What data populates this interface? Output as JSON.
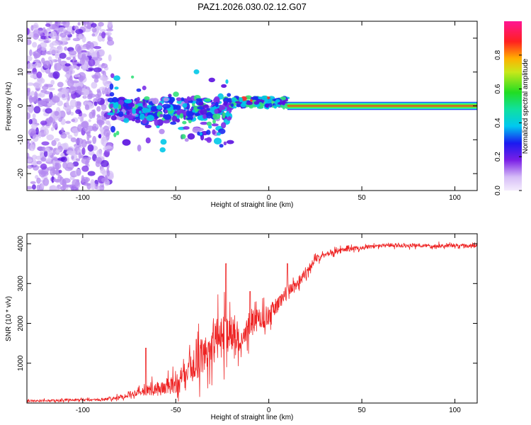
{
  "title": "PAZ1.2026.030.02.12.G07",
  "colors": {
    "snr_line": "#ee2222",
    "spectrum_core": "#ff2a2a",
    "spectrum_low": "#c9a8f5",
    "spectrum_mid": "#6a1ae0"
  },
  "chart_data": [
    {
      "type": "heatmap",
      "name": "spectrogram",
      "title": "PAZ1.2026.030.02.12.G07",
      "xlabel": "Height of straight line (km)",
      "ylabel": "Frequency (Hz)",
      "xlim": [
        -130,
        112
      ],
      "ylim": [
        -25,
        25
      ],
      "x_ticks": [
        -100,
        -50,
        0,
        50,
        100
      ],
      "y_ticks": [
        -20,
        -10,
        0,
        10,
        20
      ],
      "colorbar": {
        "label": "Normalized spectral amplitude",
        "range": [
          0,
          1
        ],
        "ticks": [
          0.0,
          0.2,
          0.4,
          0.6,
          0.8
        ],
        "tick_labels": [
          "0.0",
          "0.2",
          "0.4",
          "0.6",
          "0.8"
        ],
        "colormap": "rainbow"
      },
      "description_segments": [
        {
          "height_from": -130,
          "height_to": -85,
          "freq_center": 0,
          "freq_spread": 25,
          "amplitude": 0.1,
          "pattern": "noise"
        },
        {
          "height_from": -85,
          "height_to": -20,
          "freq_center": -1,
          "freq_spread": 3,
          "amplitude": 0.3,
          "pattern": "scattered"
        },
        {
          "height_from": -20,
          "height_to": 10,
          "freq_center": 1,
          "freq_spread": 1.5,
          "amplitude": 0.4,
          "pattern": "converging"
        },
        {
          "height_from": 10,
          "height_to": 112,
          "freq_center": 0,
          "freq_spread": 0.6,
          "amplitude": 1.0,
          "pattern": "line"
        }
      ]
    },
    {
      "type": "line",
      "name": "snr",
      "xlabel": "Height of straight line (km)",
      "ylabel": "SNR (10 * v/v)",
      "xlim": [
        -130,
        112
      ],
      "ylim": [
        0,
        4250
      ],
      "x_ticks": [
        -100,
        -50,
        0,
        50,
        100
      ],
      "y_ticks": [
        1000,
        2000,
        3000,
        4000
      ],
      "series": [
        {
          "name": "SNR",
          "x": [
            -130,
            -110,
            -90,
            -80,
            -70,
            -60,
            -50,
            -45,
            -40,
            -35,
            -30,
            -25,
            -20,
            -15,
            -10,
            -5,
            0,
            5,
            10,
            15,
            20,
            25,
            30,
            40,
            50,
            60,
            70,
            80,
            90,
            100,
            110
          ],
          "y": [
            50,
            70,
            80,
            140,
            280,
            350,
            450,
            600,
            1000,
            1200,
            1500,
            1700,
            1800,
            1500,
            2000,
            2100,
            2200,
            2500,
            2800,
            3000,
            3300,
            3600,
            3750,
            3850,
            3900,
            3950,
            3950,
            3950,
            3950,
            3950,
            3950
          ],
          "noise": [
            40,
            50,
            60,
            80,
            150,
            300,
            400,
            500,
            700,
            800,
            900,
            900,
            800,
            400,
            600,
            500,
            400,
            350,
            300,
            250,
            200,
            150,
            120,
            100,
            90,
            80,
            80,
            80,
            80,
            80,
            80
          ]
        }
      ],
      "peak_annotations": [
        {
          "x": -66,
          "y": 1380
        },
        {
          "x": -39,
          "y": 1600
        },
        {
          "x": -23,
          "y": 3500
        },
        {
          "x": -10,
          "y": 2800
        },
        {
          "x": 10,
          "y": 3500
        }
      ]
    }
  ]
}
